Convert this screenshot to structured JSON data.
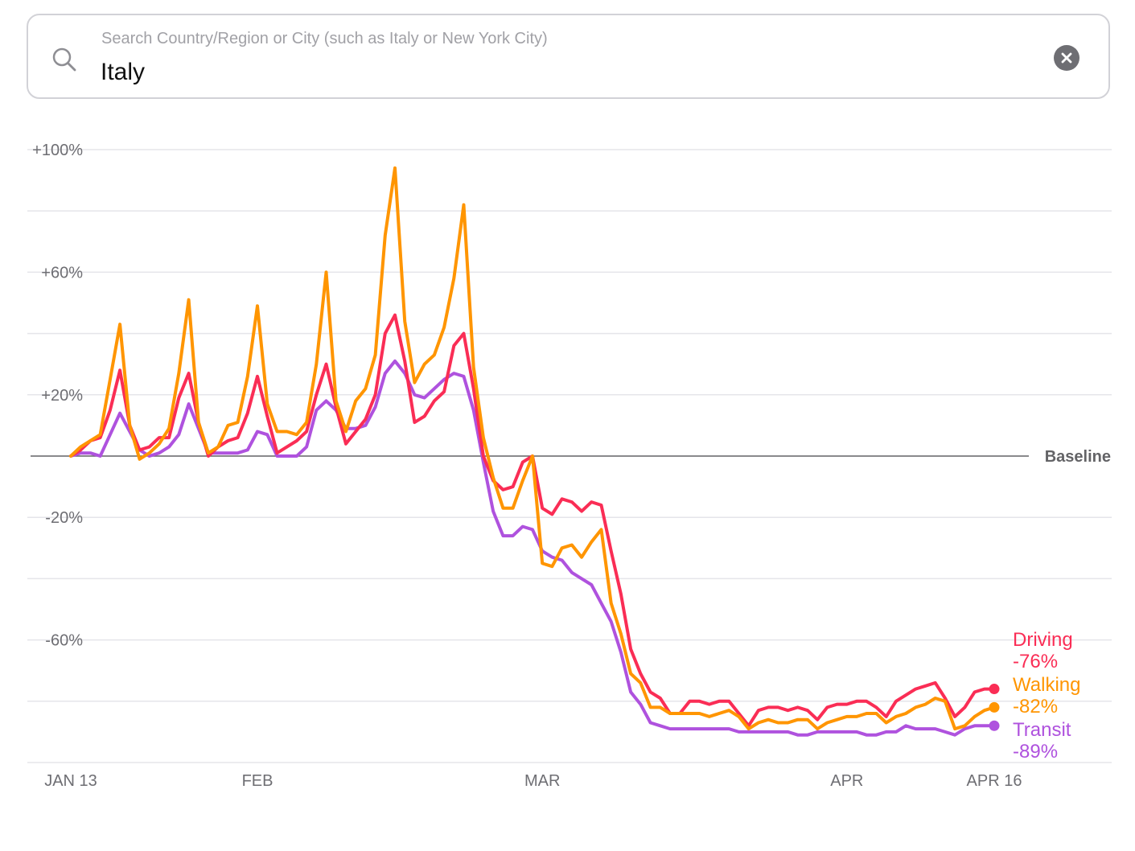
{
  "search": {
    "placeholder": "Search Country/Region or City (such as Italy or New York City)",
    "value": "Italy",
    "search_icon": "search-icon",
    "clear_icon": "close-circle-icon"
  },
  "colors": {
    "driving": "#fa2d55",
    "walking": "#ff9500",
    "transit": "#af52de",
    "grid": "#e5e5ea",
    "baseline": "#636366",
    "axis_text": "#6e6e73"
  },
  "chart_data": {
    "type": "line",
    "y_unit": "% change vs baseline",
    "ylim": [
      -100,
      100
    ],
    "y_ticks": [
      {
        "value": 100,
        "label": "+100%"
      },
      {
        "value": 60,
        "label": "+60%"
      },
      {
        "value": 20,
        "label": "+20%"
      },
      {
        "value": -20,
        "label": "-20%"
      },
      {
        "value": -60,
        "label": "-60%"
      }
    ],
    "y_gridlines": [
      100,
      80,
      60,
      40,
      20,
      -20,
      -40,
      -60,
      -80,
      -100
    ],
    "baseline": {
      "value": 0,
      "label": "Baseline"
    },
    "x_range": [
      "2020-01-13",
      "2020-04-16"
    ],
    "x_ticks": [
      {
        "date": "2020-01-13",
        "label": "JAN 13"
      },
      {
        "date": "2020-02-01",
        "label": "FEB"
      },
      {
        "date": "2020-03-01",
        "label": "MAR"
      },
      {
        "date": "2020-04-01",
        "label": "APR"
      },
      {
        "date": "2020-04-16",
        "label": "APR 16"
      }
    ],
    "grid": true,
    "legend_position": "right end of lines",
    "series": [
      {
        "name": "Driving",
        "end_label": "-76%",
        "values": [
          0,
          2,
          5,
          6,
          15,
          28,
          10,
          2,
          3,
          6,
          6,
          19,
          27,
          11,
          0,
          3,
          5,
          6,
          14,
          26,
          13,
          1,
          3,
          5,
          8,
          20,
          30,
          16,
          4,
          8,
          12,
          20,
          40,
          46,
          31,
          11,
          13,
          18,
          21,
          36,
          40,
          22,
          0,
          -8,
          -11,
          -10,
          -2,
          0,
          -17,
          -19,
          -14,
          -15,
          -18,
          -15,
          -16,
          -31,
          -45,
          -63,
          -71,
          -77,
          -79,
          -84,
          -84,
          -80,
          -80,
          -81,
          -80,
          -80,
          -84,
          -88,
          -83,
          -82,
          -82,
          -83,
          -82,
          -83,
          -86,
          -82,
          -81,
          -81,
          -80,
          -80,
          -82,
          -85,
          -80,
          -78,
          -76,
          -75,
          -74,
          -79,
          -85,
          -82,
          -77,
          -76,
          -76
        ]
      },
      {
        "name": "Walking",
        "end_label": "-82%",
        "values": [
          0,
          3,
          5,
          7,
          25,
          43,
          10,
          -1,
          1,
          4,
          9,
          27,
          51,
          11,
          1,
          3,
          10,
          11,
          26,
          49,
          17,
          8,
          8,
          7,
          11,
          30,
          60,
          18,
          8,
          18,
          22,
          33,
          72,
          94,
          44,
          24,
          30,
          33,
          42,
          58,
          82,
          29,
          6,
          -7,
          -17,
          -17,
          -8,
          0,
          -35,
          -36,
          -30,
          -29,
          -33,
          -28,
          -24,
          -48,
          -58,
          -71,
          -74,
          -82,
          -82,
          -84,
          -84,
          -84,
          -84,
          -85,
          -84,
          -83,
          -85,
          -89,
          -87,
          -86,
          -87,
          -87,
          -86,
          -86,
          -89,
          -87,
          -86,
          -85,
          -85,
          -84,
          -84,
          -87,
          -85,
          -84,
          -82,
          -81,
          -79,
          -80,
          -89,
          -88,
          -85,
          -83,
          -82
        ]
      },
      {
        "name": "Transit",
        "end_label": "-89%",
        "values": [
          0,
          1,
          1,
          0,
          7,
          14,
          8,
          2,
          0,
          1,
          3,
          7,
          17,
          9,
          1,
          1,
          1,
          1,
          2,
          8,
          7,
          0,
          0,
          0,
          3,
          15,
          18,
          15,
          9,
          9,
          10,
          16,
          27,
          31,
          27,
          20,
          19,
          22,
          25,
          27,
          26,
          15,
          -2,
          -18,
          -26,
          -26,
          -23,
          -24,
          -31,
          -33,
          -34,
          -38,
          -40,
          -42,
          -48,
          -54,
          -64,
          -77,
          -81,
          -87,
          -88,
          -89,
          -89,
          -89,
          -89,
          -89,
          -89,
          -89,
          -90,
          -90,
          -90,
          -90,
          -90,
          -90,
          -91,
          -91,
          -90,
          -90,
          -90,
          -90,
          -90,
          -91,
          -91,
          -90,
          -90,
          -88,
          -89,
          -89,
          -89,
          -90,
          -91,
          -89,
          -88,
          -88,
          -88
        ]
      }
    ]
  }
}
